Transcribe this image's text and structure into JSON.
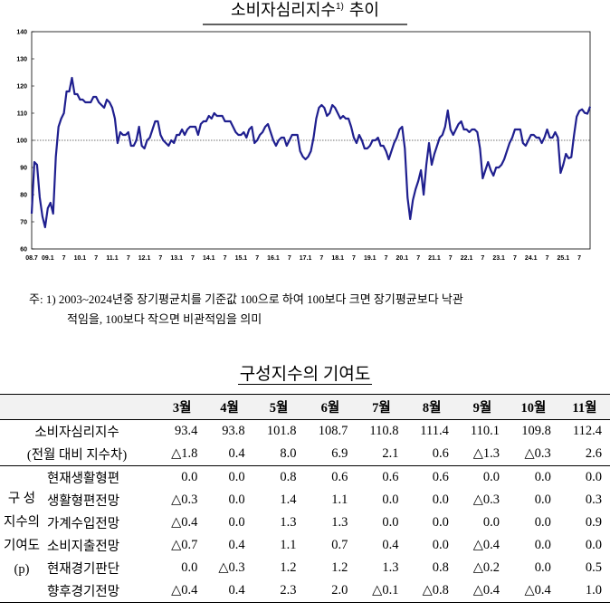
{
  "chart_data": {
    "type": "line",
    "title": "소비자심리지수",
    "title_note": "1)",
    "title_suffix": "추이",
    "categories": [
      "08.7",
      null,
      null,
      null,
      null,
      null,
      "09.1",
      null,
      null,
      null,
      null,
      null,
      "7",
      null,
      null,
      null,
      null,
      null,
      "10.1",
      null,
      null,
      null,
      null,
      null,
      "7",
      null,
      null,
      null,
      null,
      null,
      "11.1",
      null,
      null,
      null,
      null,
      null,
      "7",
      null,
      null,
      null,
      null,
      null,
      "12.1",
      null,
      null,
      null,
      null,
      null,
      "7",
      null,
      null,
      null,
      null,
      null,
      "13.1",
      null,
      null,
      null,
      null,
      null,
      "7",
      null,
      null,
      null,
      null,
      null,
      "14.1",
      null,
      null,
      null,
      null,
      null,
      "7",
      null,
      null,
      null,
      null,
      null,
      "15.1",
      null,
      null,
      null,
      null,
      null,
      "7",
      null,
      null,
      null,
      null,
      null,
      "16.1",
      null,
      null,
      null,
      null,
      null,
      "7",
      null,
      null,
      null,
      null,
      null,
      "17.1",
      null,
      null,
      null,
      null,
      null,
      "7",
      null,
      null,
      null,
      null,
      null,
      "18.1",
      null,
      null,
      null,
      null,
      null,
      "7",
      null,
      null,
      null,
      null,
      null,
      "19.1",
      null,
      null,
      null,
      null,
      null,
      "7",
      null,
      null,
      null,
      null,
      null,
      "20.1",
      null,
      null,
      null,
      null,
      null,
      "7",
      null,
      null,
      null,
      null,
      null,
      "21.1",
      null,
      null,
      null,
      null,
      null,
      "7",
      null,
      null,
      null,
      null,
      null,
      "22.1",
      null,
      null,
      null,
      null,
      null,
      "7",
      null,
      null,
      null,
      null,
      null,
      "23.1",
      null,
      null,
      null,
      null,
      null,
      "7",
      null,
      null,
      null,
      null,
      null,
      "24.1",
      null,
      null,
      null,
      null,
      null,
      "7",
      null,
      null,
      null,
      null,
      null,
      "25.1",
      null,
      null,
      null,
      null,
      null,
      "7",
      null,
      null,
      null,
      null
    ],
    "values": [
      73,
      92,
      91,
      79,
      72,
      68,
      75,
      77,
      73,
      94,
      105,
      108,
      110,
      118,
      118,
      123,
      117,
      117,
      115,
      115,
      114,
      114,
      114,
      116,
      116,
      114,
      113,
      112,
      115,
      114,
      112,
      108,
      99,
      103,
      102,
      102,
      103,
      98,
      98,
      100,
      105,
      98,
      97,
      100,
      101,
      104,
      107,
      107,
      102,
      100,
      99,
      98,
      100,
      99,
      102,
      102,
      104,
      102,
      104,
      105,
      105,
      105,
      102,
      106,
      107,
      107,
      109,
      108,
      110,
      109,
      109,
      109,
      107,
      107,
      107,
      105,
      103,
      102,
      102,
      103,
      101,
      104,
      105,
      99,
      100,
      102,
      103,
      105,
      106,
      103,
      100,
      98,
      100,
      101,
      101,
      98,
      100,
      102,
      102,
      102,
      96,
      94,
      93,
      94,
      96,
      101,
      108,
      112,
      113,
      112,
      109,
      110,
      113,
      112,
      110,
      108,
      109,
      108,
      108,
      105,
      101,
      99,
      102,
      100,
      97,
      97,
      98,
      100,
      100,
      101,
      98,
      98,
      96,
      93,
      96,
      99,
      101,
      104,
      105,
      97,
      79,
      71,
      78,
      82,
      85,
      89,
      80,
      91,
      99,
      91,
      95,
      98,
      101,
      102,
      105,
      111,
      104,
      102,
      104,
      106,
      107,
      104,
      104,
      103,
      104,
      104,
      103,
      97,
      86,
      89,
      92,
      89,
      87,
      90,
      90,
      91,
      93,
      96,
      99,
      101,
      104,
      104,
      104,
      99,
      98,
      100,
      102,
      102,
      101,
      101,
      99,
      101,
      104,
      101,
      101,
      103,
      101,
      88,
      91,
      95,
      93.4,
      93.8,
      101.8,
      108.7,
      110.8,
      111.4,
      110.1,
      109.8,
      112.4
    ],
    "color": "#1f1f8f",
    "ylim": [
      60,
      140
    ],
    "yticks": [
      60,
      70,
      80,
      90,
      100,
      110,
      120,
      130,
      140
    ],
    "hline": 100
  },
  "footnote": [
    "주: 1) 2003~2024년중 장기평균치를 기준값 100으로 하여 100보다 크면 장기평균보다 낙관",
    "적임을, 100보다 작으면 비관적임을 의미"
  ],
  "table": {
    "title": "구성지수의 기여도",
    "header": [
      "3월",
      "4월",
      "5월",
      "6월",
      "7월",
      "8월",
      "9월",
      "10월",
      "11월"
    ],
    "group": [
      "구 성",
      "지수의",
      "기여도",
      "(p)"
    ],
    "rows": [
      {
        "label": "소비자심리지수",
        "cells": [
          "93.4",
          "93.8",
          "101.8",
          "108.7",
          "110.8",
          "111.4",
          "110.1",
          "109.8",
          "112.4"
        ]
      },
      {
        "label": "(전월 대비 지수차)",
        "cells": [
          "△1.8",
          "0.4",
          "8.0",
          "6.9",
          "2.1",
          "0.6",
          "△1.3",
          "△0.3",
          "2.6"
        ]
      },
      {
        "label": "현재생활형편",
        "cells": [
          "0.0",
          "0.0",
          "0.8",
          "0.6",
          "0.6",
          "0.6",
          "0.0",
          "0.0",
          "0.0"
        ]
      },
      {
        "label": "생활형편전망",
        "cells": [
          "△0.3",
          "0.0",
          "1.4",
          "1.1",
          "0.0",
          "0.0",
          "△0.3",
          "0.0",
          "0.3"
        ]
      },
      {
        "label": "가계수입전망",
        "cells": [
          "△0.4",
          "0.0",
          "1.3",
          "1.3",
          "0.0",
          "0.0",
          "0.0",
          "0.0",
          "0.9"
        ]
      },
      {
        "label": "소비지출전망",
        "cells": [
          "△0.7",
          "0.4",
          "1.1",
          "0.7",
          "0.4",
          "0.0",
          "△0.4",
          "0.0",
          "0.0"
        ]
      },
      {
        "label": "현재경기판단",
        "cells": [
          "0.0",
          "△0.3",
          "1.2",
          "1.2",
          "1.3",
          "0.8",
          "△0.2",
          "0.0",
          "0.5"
        ]
      },
      {
        "label": "향후경기전망",
        "cells": [
          "△0.4",
          "0.4",
          "2.3",
          "2.0",
          "△0.1",
          "△0.8",
          "△0.4",
          "△0.4",
          "1.0"
        ]
      }
    ]
  }
}
